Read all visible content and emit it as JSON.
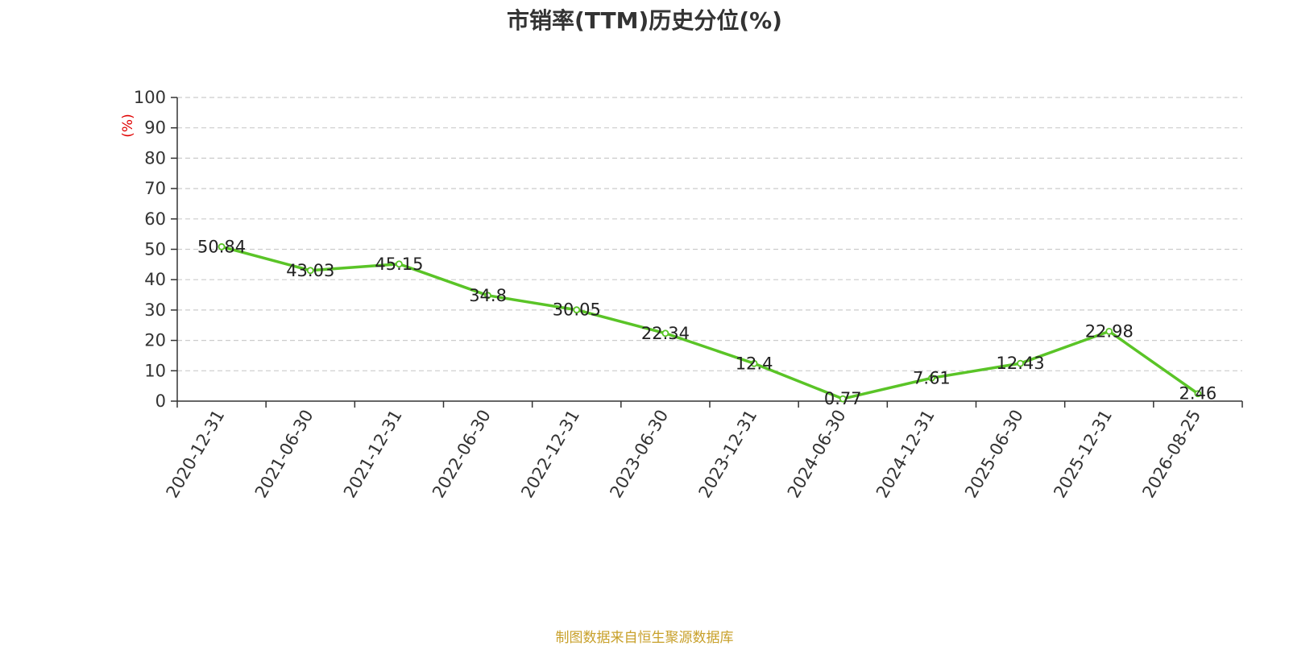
{
  "chart_data": {
    "type": "line",
    "title": "市销率(TTM)历史分位(%)",
    "ylabel": "(%)",
    "xlabel": "",
    "categories": [
      "2020-12-31",
      "2021-06-30",
      "2021-12-31",
      "2022-06-30",
      "2022-12-31",
      "2023-06-30",
      "2023-12-31",
      "2024-06-30",
      "2024-12-31",
      "2025-06-30",
      "2025-12-31",
      "2026-08-25"
    ],
    "series": [
      {
        "values": [
          50.84,
          43.03,
          45.15,
          34.8,
          30.05,
          22.34,
          12.4,
          0.77,
          7.61,
          12.43,
          22.98,
          2.46
        ],
        "labels": [
          "50.84",
          "43.03",
          "45.15",
          "34.8",
          "30.05",
          "22.34",
          "12.4",
          "0.77",
          "7.61",
          "12.43",
          "22.98",
          "2.46"
        ],
        "color": "#5ac427"
      }
    ],
    "ylim": [
      0,
      100
    ],
    "yticks": [
      "0",
      "10",
      "20",
      "30",
      "40",
      "50",
      "60",
      "70",
      "80",
      "90",
      "100"
    ],
    "grid": true,
    "legend": "none"
  },
  "colors": {
    "line": "#5ac427",
    "grid": "#cccccc",
    "axis": "#333333",
    "unit_label": "#e00000",
    "source": "#c8a02a"
  },
  "source_note": "制图数据来自恒生聚源数据库"
}
